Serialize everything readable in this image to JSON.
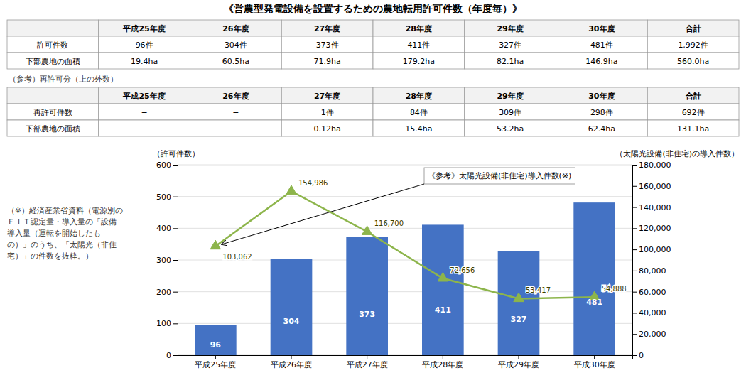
{
  "chart_data": {
    "type": "bar",
    "title": "《営農型発電設備を設置するための農地転用許可件数（年度毎）》",
    "categories": [
      "平成25年度",
      "平成26年度",
      "平成27年度",
      "平成28年度",
      "平成29年度",
      "平成30年度"
    ],
    "series": [
      {
        "type": "bar",
        "color": "#4472C4",
        "values": [
          96,
          304,
          373,
          411,
          327,
          481
        ],
        "data_labels": true
      },
      {
        "type": "line",
        "axis": "y2",
        "color": "#8DB54B",
        "marker": "triangle",
        "line_style": "solid",
        "values": [
          103062,
          154986,
          116700,
          72656,
          53417,
          54888
        ],
        "value_labels": [
          "103,062",
          "154,986",
          "116,700",
          "72,656",
          "53,417",
          "54,888"
        ],
        "data_labels": true
      }
    ],
    "y_label": "（許可件数）",
    "y2_label": "（太陽光設備(非住宅)の導入件数）",
    "ylim": [
      0,
      600
    ],
    "yticks": [
      0,
      100,
      200,
      300,
      400,
      500,
      600
    ],
    "y2lim": [
      0,
      180000
    ],
    "y2ticks": [
      0,
      {
        "value": 20000,
        "label": "20,000"
      },
      {
        "value": 40000,
        "label": "40,000"
      },
      {
        "value": 60000,
        "label": "60,000"
      },
      {
        "value": 80000,
        "label": "80,000"
      },
      {
        "value": 100000,
        "label": "100,000"
      },
      {
        "value": 120000,
        "label": "120,000"
      },
      {
        "value": 140000,
        "label": "140,000"
      },
      {
        "value": 160000,
        "label": "160,000"
      },
      {
        "value": 180000,
        "label": "180,000"
      }
    ],
    "grid": true,
    "annotations": [
      "《参考》太陽光設備(非住宅)導入件数(※)"
    ],
    "footnote": [
      "（※）経済産業省資料（電源別の",
      "ＦＩＴ認定量・導入量の「設備",
      "導入量（運転を開始したも",
      "の）」のうち、「太陽光（非住",
      "宅）」の件数を抜粋。）"
    ]
  },
  "tables": [
    {
      "headers": [
        null,
        "平成25年度",
        "26年度",
        "27年度",
        "28年度",
        "29年度",
        "30年度",
        "合計"
      ],
      "rows": [
        [
          "許可件数",
          "96件",
          "304件",
          "373件",
          "411件",
          "327件",
          "481件",
          "1,992件"
        ],
        [
          "下部農地の面積",
          "19.4ha",
          "60.5ha",
          "71.9ha",
          "179.2ha",
          "82.1ha",
          "146.9ha",
          "560.0ha"
        ]
      ]
    },
    {
      "label": "（参考）再許可分（上の外数）",
      "headers": [
        null,
        "平成25年度",
        "26年度",
        "27年度",
        "28年度",
        "29年度",
        "30年度",
        "合計"
      ],
      "rows": [
        [
          "再許可件数",
          "−",
          "−",
          "1件",
          "84件",
          "309件",
          "298件",
          "692件"
        ],
        [
          "下部農地の面積",
          "−",
          "−",
          "0.12ha",
          "15.4ha",
          "53.2ha",
          "62.4ha",
          "131.1ha"
        ]
      ]
    }
  ]
}
